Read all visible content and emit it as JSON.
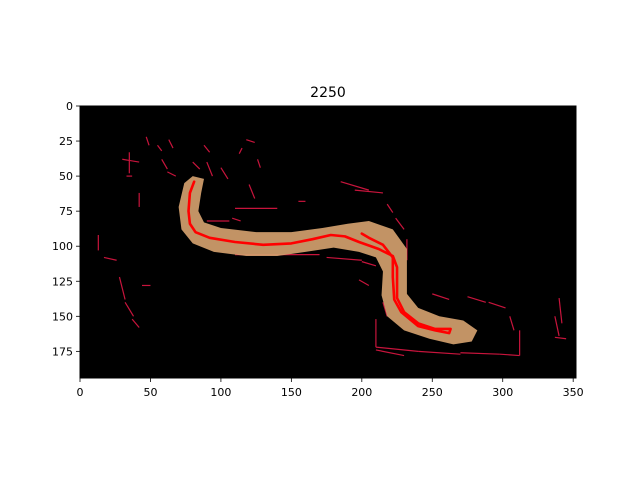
{
  "chart_data": {
    "type": "image",
    "title": "2250",
    "xlim": [
      0,
      352
    ],
    "ylim": [
      194,
      0
    ],
    "xticks": [
      0,
      50,
      100,
      150,
      200,
      250,
      300,
      350
    ],
    "yticks": [
      0,
      25,
      50,
      75,
      100,
      125,
      150,
      175
    ],
    "xtick_labels": [
      "0",
      "50",
      "100",
      "150",
      "200",
      "250",
      "300",
      "350"
    ],
    "ytick_labels": [
      "0",
      "25",
      "50",
      "75",
      "100",
      "125",
      "150",
      "175"
    ],
    "background_color": "#000000",
    "overlay_color": "#ff0000",
    "edge_color": "#c8143c",
    "body_color": "#d2a06e",
    "overlay_line": [
      [
        81,
        54
      ],
      [
        78,
        62
      ],
      [
        77,
        75
      ],
      [
        78,
        84
      ],
      [
        82,
        90
      ],
      [
        92,
        94
      ],
      [
        110,
        97
      ],
      [
        130,
        99
      ],
      [
        150,
        98
      ],
      [
        165,
        95
      ],
      [
        178,
        92
      ],
      [
        188,
        93
      ],
      [
        198,
        97
      ],
      [
        212,
        102
      ],
      [
        222,
        107
      ],
      [
        225,
        115
      ],
      [
        225,
        125
      ],
      [
        225,
        137
      ],
      [
        230,
        147
      ],
      [
        240,
        155
      ],
      [
        252,
        159
      ],
      [
        263,
        159
      ],
      [
        262,
        162
      ],
      [
        252,
        160
      ],
      [
        240,
        157
      ],
      [
        228,
        147
      ],
      [
        223,
        138
      ],
      [
        222,
        122
      ],
      [
        222,
        108
      ],
      [
        215,
        99
      ],
      [
        205,
        94
      ],
      [
        200,
        91
      ]
    ],
    "body_polygon": [
      [
        74,
        55
      ],
      [
        80,
        50
      ],
      [
        88,
        52
      ],
      [
        86,
        62
      ],
      [
        84,
        75
      ],
      [
        88,
        83
      ],
      [
        100,
        87
      ],
      [
        125,
        90
      ],
      [
        150,
        90
      ],
      [
        172,
        87
      ],
      [
        190,
        84
      ],
      [
        205,
        82
      ],
      [
        222,
        88
      ],
      [
        232,
        102
      ],
      [
        232,
        120
      ],
      [
        232,
        134
      ],
      [
        240,
        144
      ],
      [
        255,
        150
      ],
      [
        272,
        153
      ],
      [
        282,
        160
      ],
      [
        278,
        168
      ],
      [
        265,
        170
      ],
      [
        248,
        166
      ],
      [
        230,
        160
      ],
      [
        218,
        150
      ],
      [
        214,
        135
      ],
      [
        215,
        118
      ],
      [
        210,
        108
      ],
      [
        198,
        104
      ],
      [
        180,
        101
      ],
      [
        160,
        104
      ],
      [
        140,
        107
      ],
      [
        118,
        107
      ],
      [
        95,
        104
      ],
      [
        80,
        98
      ],
      [
        72,
        88
      ],
      [
        70,
        72
      ]
    ],
    "edge_segments": [
      [
        [
          35,
          33
        ],
        [
          35,
          48
        ]
      ],
      [
        [
          30,
          38
        ],
        [
          42,
          40
        ]
      ],
      [
        [
          33,
          50
        ],
        [
          37,
          50
        ]
      ],
      [
        [
          47,
          22
        ],
        [
          49,
          28
        ]
      ],
      [
        [
          55,
          28
        ],
        [
          58,
          32
        ]
      ],
      [
        [
          58,
          38
        ],
        [
          62,
          45
        ]
      ],
      [
        [
          63,
          24
        ],
        [
          66,
          30
        ]
      ],
      [
        [
          42,
          62
        ],
        [
          42,
          72
        ]
      ],
      [
        [
          62,
          47
        ],
        [
          68,
          50
        ]
      ],
      [
        [
          80,
          40
        ],
        [
          85,
          45
        ]
      ],
      [
        [
          88,
          28
        ],
        [
          92,
          33
        ]
      ],
      [
        [
          90,
          40
        ],
        [
          94,
          50
        ]
      ],
      [
        [
          100,
          44
        ],
        [
          105,
          52
        ]
      ],
      [
        [
          120,
          56
        ],
        [
          124,
          66
        ]
      ],
      [
        [
          126,
          38
        ],
        [
          128,
          44
        ]
      ],
      [
        [
          118,
          24
        ],
        [
          124,
          26
        ]
      ],
      [
        [
          115,
          30
        ],
        [
          113,
          34
        ]
      ],
      [
        [
          155,
          68
        ],
        [
          160,
          68
        ]
      ],
      [
        [
          110,
          73
        ],
        [
          140,
          73
        ]
      ],
      [
        [
          90,
          82
        ],
        [
          106,
          82
        ]
      ],
      [
        [
          108,
          80
        ],
        [
          114,
          82
        ]
      ],
      [
        [
          13,
          92
        ],
        [
          13,
          103
        ]
      ],
      [
        [
          17,
          108
        ],
        [
          26,
          110
        ]
      ],
      [
        [
          28,
          122
        ],
        [
          32,
          138
        ]
      ],
      [
        [
          32,
          140
        ],
        [
          38,
          150
        ]
      ],
      [
        [
          37,
          152
        ],
        [
          42,
          158
        ]
      ],
      [
        [
          44,
          128
        ],
        [
          50,
          128
        ]
      ],
      [
        [
          110,
          106
        ],
        [
          170,
          106
        ]
      ],
      [
        [
          175,
          108
        ],
        [
          200,
          110
        ]
      ],
      [
        [
          185,
          54
        ],
        [
          205,
          60
        ]
      ],
      [
        [
          195,
          60
        ],
        [
          215,
          62
        ]
      ],
      [
        [
          218,
          70
        ],
        [
          222,
          76
        ]
      ],
      [
        [
          224,
          80
        ],
        [
          230,
          88
        ]
      ],
      [
        [
          232,
          95
        ],
        [
          232,
          110
        ]
      ],
      [
        [
          200,
          111
        ],
        [
          210,
          114
        ]
      ],
      [
        [
          198,
          124
        ],
        [
          205,
          128
        ]
      ],
      [
        [
          210,
          152
        ],
        [
          210,
          172
        ]
      ],
      [
        [
          210,
          172
        ],
        [
          240,
          175
        ]
      ],
      [
        [
          240,
          175
        ],
        [
          270,
          177
        ]
      ],
      [
        [
          270,
          176
        ],
        [
          298,
          177
        ]
      ],
      [
        [
          298,
          177
        ],
        [
          312,
          178
        ]
      ],
      [
        [
          312,
          160
        ],
        [
          312,
          178
        ]
      ],
      [
        [
          250,
          134
        ],
        [
          262,
          138
        ]
      ],
      [
        [
          275,
          136
        ],
        [
          288,
          140
        ]
      ],
      [
        [
          290,
          140
        ],
        [
          302,
          144
        ]
      ],
      [
        [
          305,
          150
        ],
        [
          308,
          160
        ]
      ],
      [
        [
          337,
          150
        ],
        [
          340,
          164
        ]
      ],
      [
        [
          337,
          165
        ],
        [
          345,
          166
        ]
      ],
      [
        [
          340,
          137
        ],
        [
          342,
          155
        ]
      ],
      [
        [
          210,
          174
        ],
        [
          230,
          178
        ]
      ],
      [
        [
          215,
          140
        ],
        [
          218,
          150
        ]
      ]
    ]
  }
}
